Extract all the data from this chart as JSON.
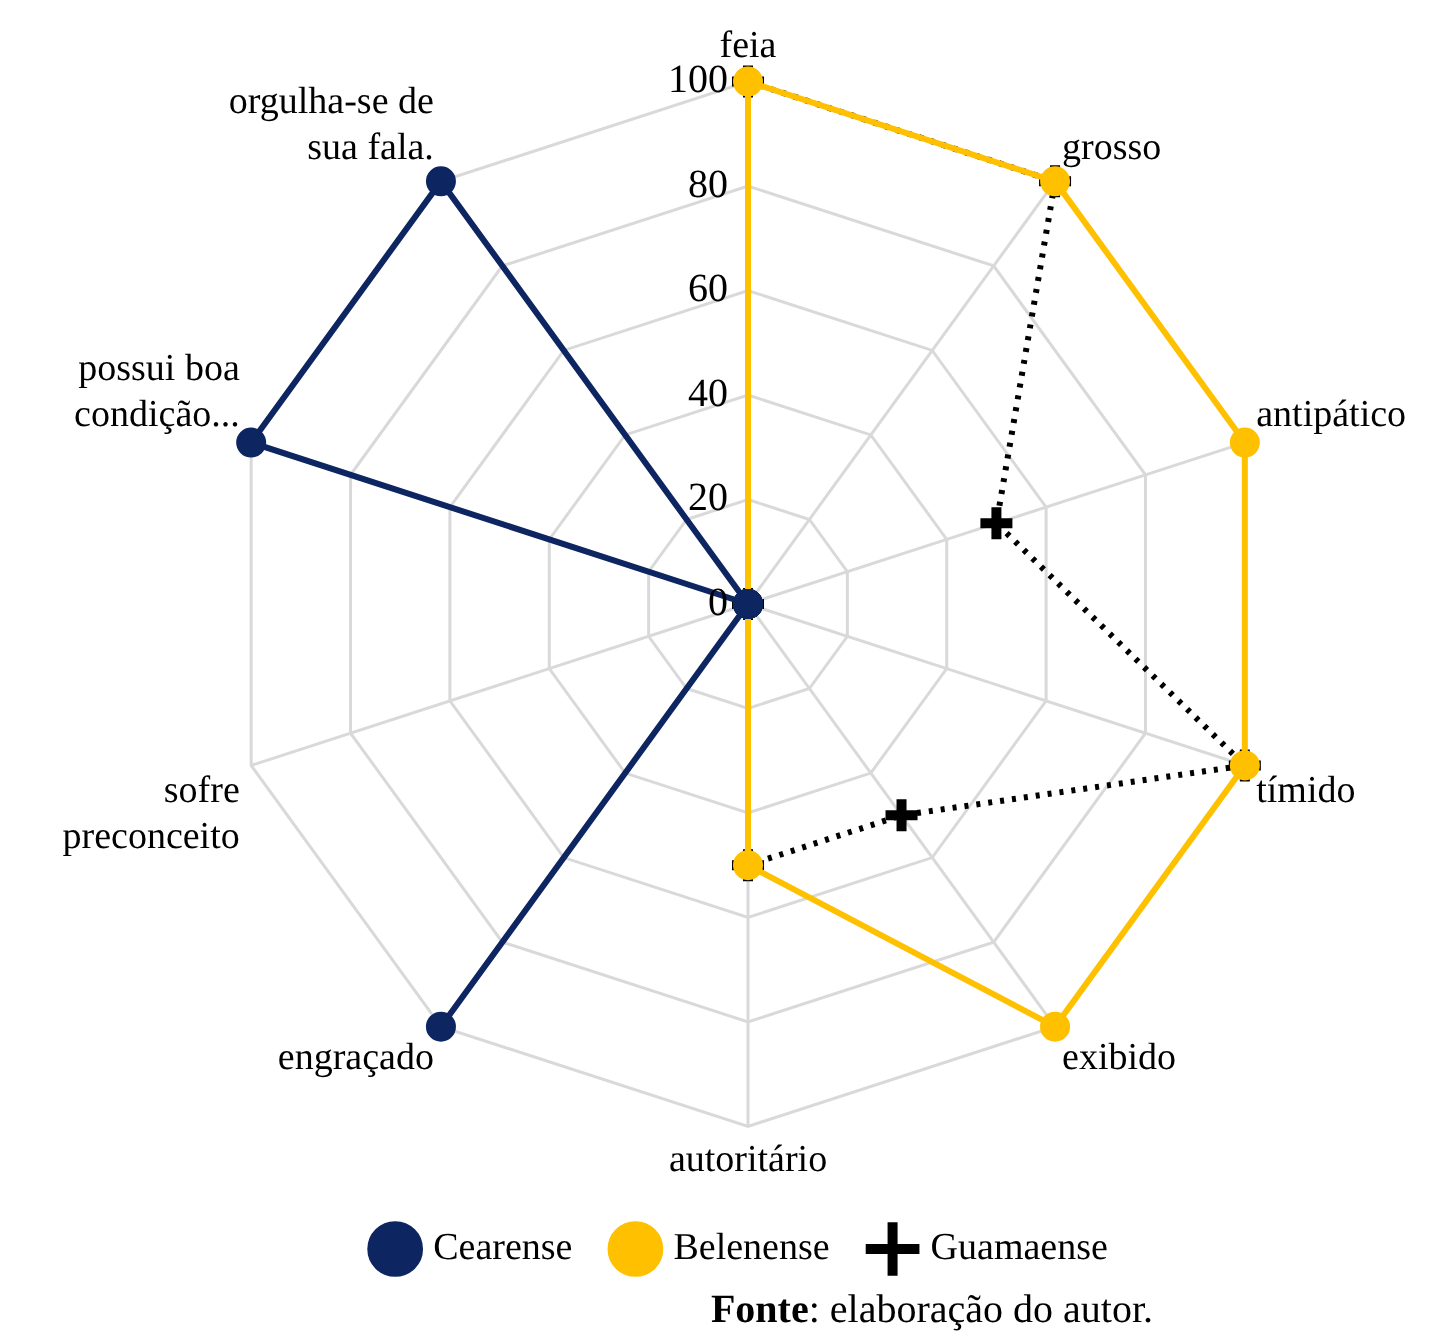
{
  "chart_data": {
    "type": "radar",
    "categories": [
      "feia",
      "grosso",
      "antipático",
      "tímido",
      "exibido",
      "autoritário",
      "engraçado",
      "sofre preconceito",
      "possui boa condição...",
      "orgulha-se de sua fala."
    ],
    "series": [
      {
        "name": "Cearense",
        "color": "#0d2560",
        "marker": "circle",
        "line_style": "solid",
        "values": [
          0,
          0,
          0,
          0,
          0,
          0,
          100,
          0,
          100,
          100
        ]
      },
      {
        "name": "Belenense",
        "color": "#ffc000",
        "marker": "circle",
        "line_style": "solid",
        "values": [
          100,
          100,
          100,
          100,
          100,
          50,
          0,
          0,
          0,
          0
        ]
      },
      {
        "name": "Guamaense",
        "color": "#000000",
        "marker": "cross",
        "line_style": "dotted",
        "values": [
          100,
          100,
          50,
          100,
          50,
          50,
          0,
          0,
          0,
          0
        ]
      }
    ],
    "ylim": [
      0,
      100
    ],
    "yticks": [
      0,
      20,
      40,
      60,
      80,
      100
    ],
    "grid": true,
    "legend": "bottom",
    "annotations": [
      "Fonte: elaboração do autor."
    ]
  }
}
